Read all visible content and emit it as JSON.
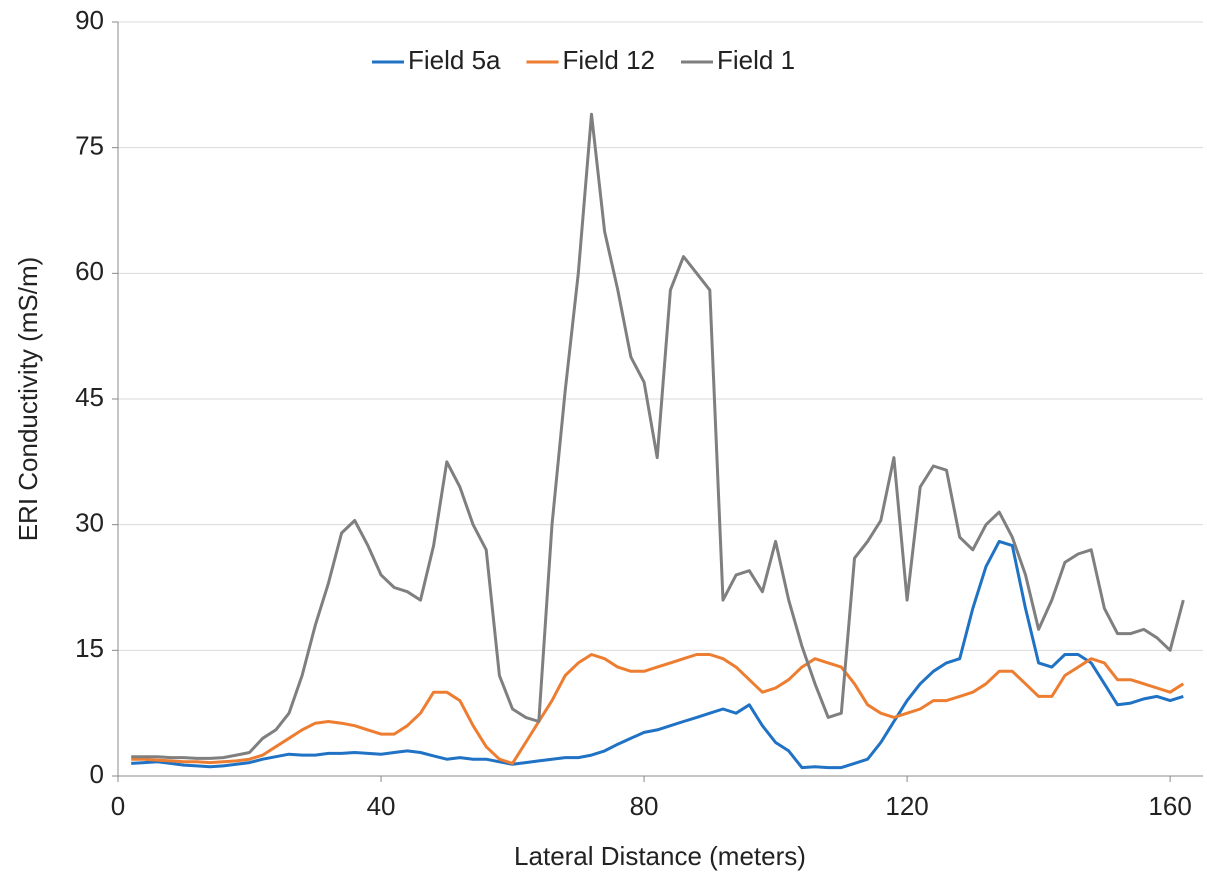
{
  "chart_data": {
    "type": "line",
    "x_label": "Lateral Distance (meters)",
    "y_label": "ERI Conductivity (mS/m)",
    "xlim": [
      0,
      165
    ],
    "xticks": [
      0,
      40,
      80,
      120,
      160
    ],
    "ylim": [
      0,
      90
    ],
    "yticks": [
      0,
      15,
      30,
      45,
      60,
      75,
      90
    ],
    "grid": true,
    "legend": "top",
    "x": [
      2,
      4,
      6,
      8,
      10,
      12,
      14,
      16,
      18,
      20,
      22,
      24,
      26,
      28,
      30,
      32,
      34,
      36,
      38,
      40,
      42,
      44,
      46,
      48,
      50,
      52,
      54,
      56,
      58,
      60,
      62,
      64,
      66,
      68,
      70,
      72,
      74,
      76,
      78,
      80,
      82,
      84,
      86,
      88,
      90,
      92,
      94,
      96,
      98,
      100,
      102,
      104,
      106,
      108,
      110,
      112,
      114,
      116,
      118,
      120,
      122,
      124,
      126,
      128,
      130,
      132,
      134,
      136,
      138,
      140,
      142,
      144,
      146,
      148,
      150,
      152,
      154,
      156,
      158,
      160,
      162
    ],
    "series": [
      {
        "name": "Field 5a",
        "color": "#1f72c4",
        "values": [
          1.5,
          1.6,
          1.7,
          1.5,
          1.3,
          1.2,
          1.1,
          1.2,
          1.4,
          1.6,
          2,
          2.3,
          2.6,
          2.5,
          2.5,
          2.7,
          2.7,
          2.8,
          2.7,
          2.6,
          2.8,
          3,
          2.8,
          2.4,
          2,
          2.2,
          2,
          2,
          1.7,
          1.4,
          1.6,
          1.8,
          2,
          2.2,
          2.2,
          2.5,
          3,
          3.8,
          4.5,
          5.2,
          5.5,
          6,
          6.5,
          7,
          7.5,
          8,
          7.5,
          8.5,
          6,
          4,
          3,
          1,
          1.1,
          1,
          1,
          1.5,
          2,
          4,
          6.5,
          9,
          11,
          12.5,
          13.5,
          14,
          20,
          25,
          28,
          27.5,
          20,
          13.5,
          13,
          14.5,
          14.5,
          13.5,
          11,
          8.5,
          8.7,
          9.2,
          9.5,
          9,
          9.5
        ]
      },
      {
        "name": "Field 12",
        "color": "#ed7d31",
        "values": [
          2,
          2,
          1.9,
          1.8,
          1.7,
          1.7,
          1.6,
          1.7,
          1.8,
          2,
          2.5,
          3.5,
          4.5,
          5.5,
          6.3,
          6.5,
          6.3,
          6,
          5.5,
          5,
          5,
          6,
          7.5,
          10,
          10,
          9,
          6,
          3.5,
          2,
          1.5,
          4,
          6.5,
          9,
          12,
          13.5,
          14.5,
          14,
          13,
          12.5,
          12.5,
          13,
          13.5,
          14,
          14.5,
          14.5,
          14,
          13,
          11.5,
          10,
          10.5,
          11.5,
          13,
          14,
          13.5,
          13,
          11,
          8.5,
          7.5,
          7,
          7.5,
          8,
          9,
          9,
          9.5,
          10,
          11,
          12.5,
          12.5,
          11,
          9.5,
          9.5,
          12,
          13,
          14,
          13.5,
          11.5,
          11.5,
          11,
          10.5,
          10,
          11
        ]
      },
      {
        "name": "Field 1",
        "color": "#7f7f7f",
        "values": [
          2.3,
          2.3,
          2.3,
          2.2,
          2.2,
          2.1,
          2.1,
          2.2,
          2.5,
          2.8,
          4.5,
          5.5,
          7.5,
          12,
          18,
          23,
          29,
          30.5,
          27.5,
          24,
          22.5,
          22,
          21,
          27.5,
          37.5,
          34.5,
          30,
          27,
          12,
          8,
          7,
          6.5,
          30,
          46,
          60,
          79,
          65,
          58,
          50,
          47,
          38,
          58,
          62,
          60,
          58,
          21,
          24,
          24.5,
          22,
          28,
          21,
          15.5,
          11,
          7,
          7.5,
          26,
          28,
          30.5,
          38,
          21,
          34.5,
          37,
          36.5,
          28.5,
          27,
          30,
          31.5,
          28.5,
          24,
          17.5,
          21,
          25.5,
          26.5,
          27,
          20,
          17,
          17,
          17.5,
          16.5,
          15,
          21
        ]
      }
    ]
  }
}
